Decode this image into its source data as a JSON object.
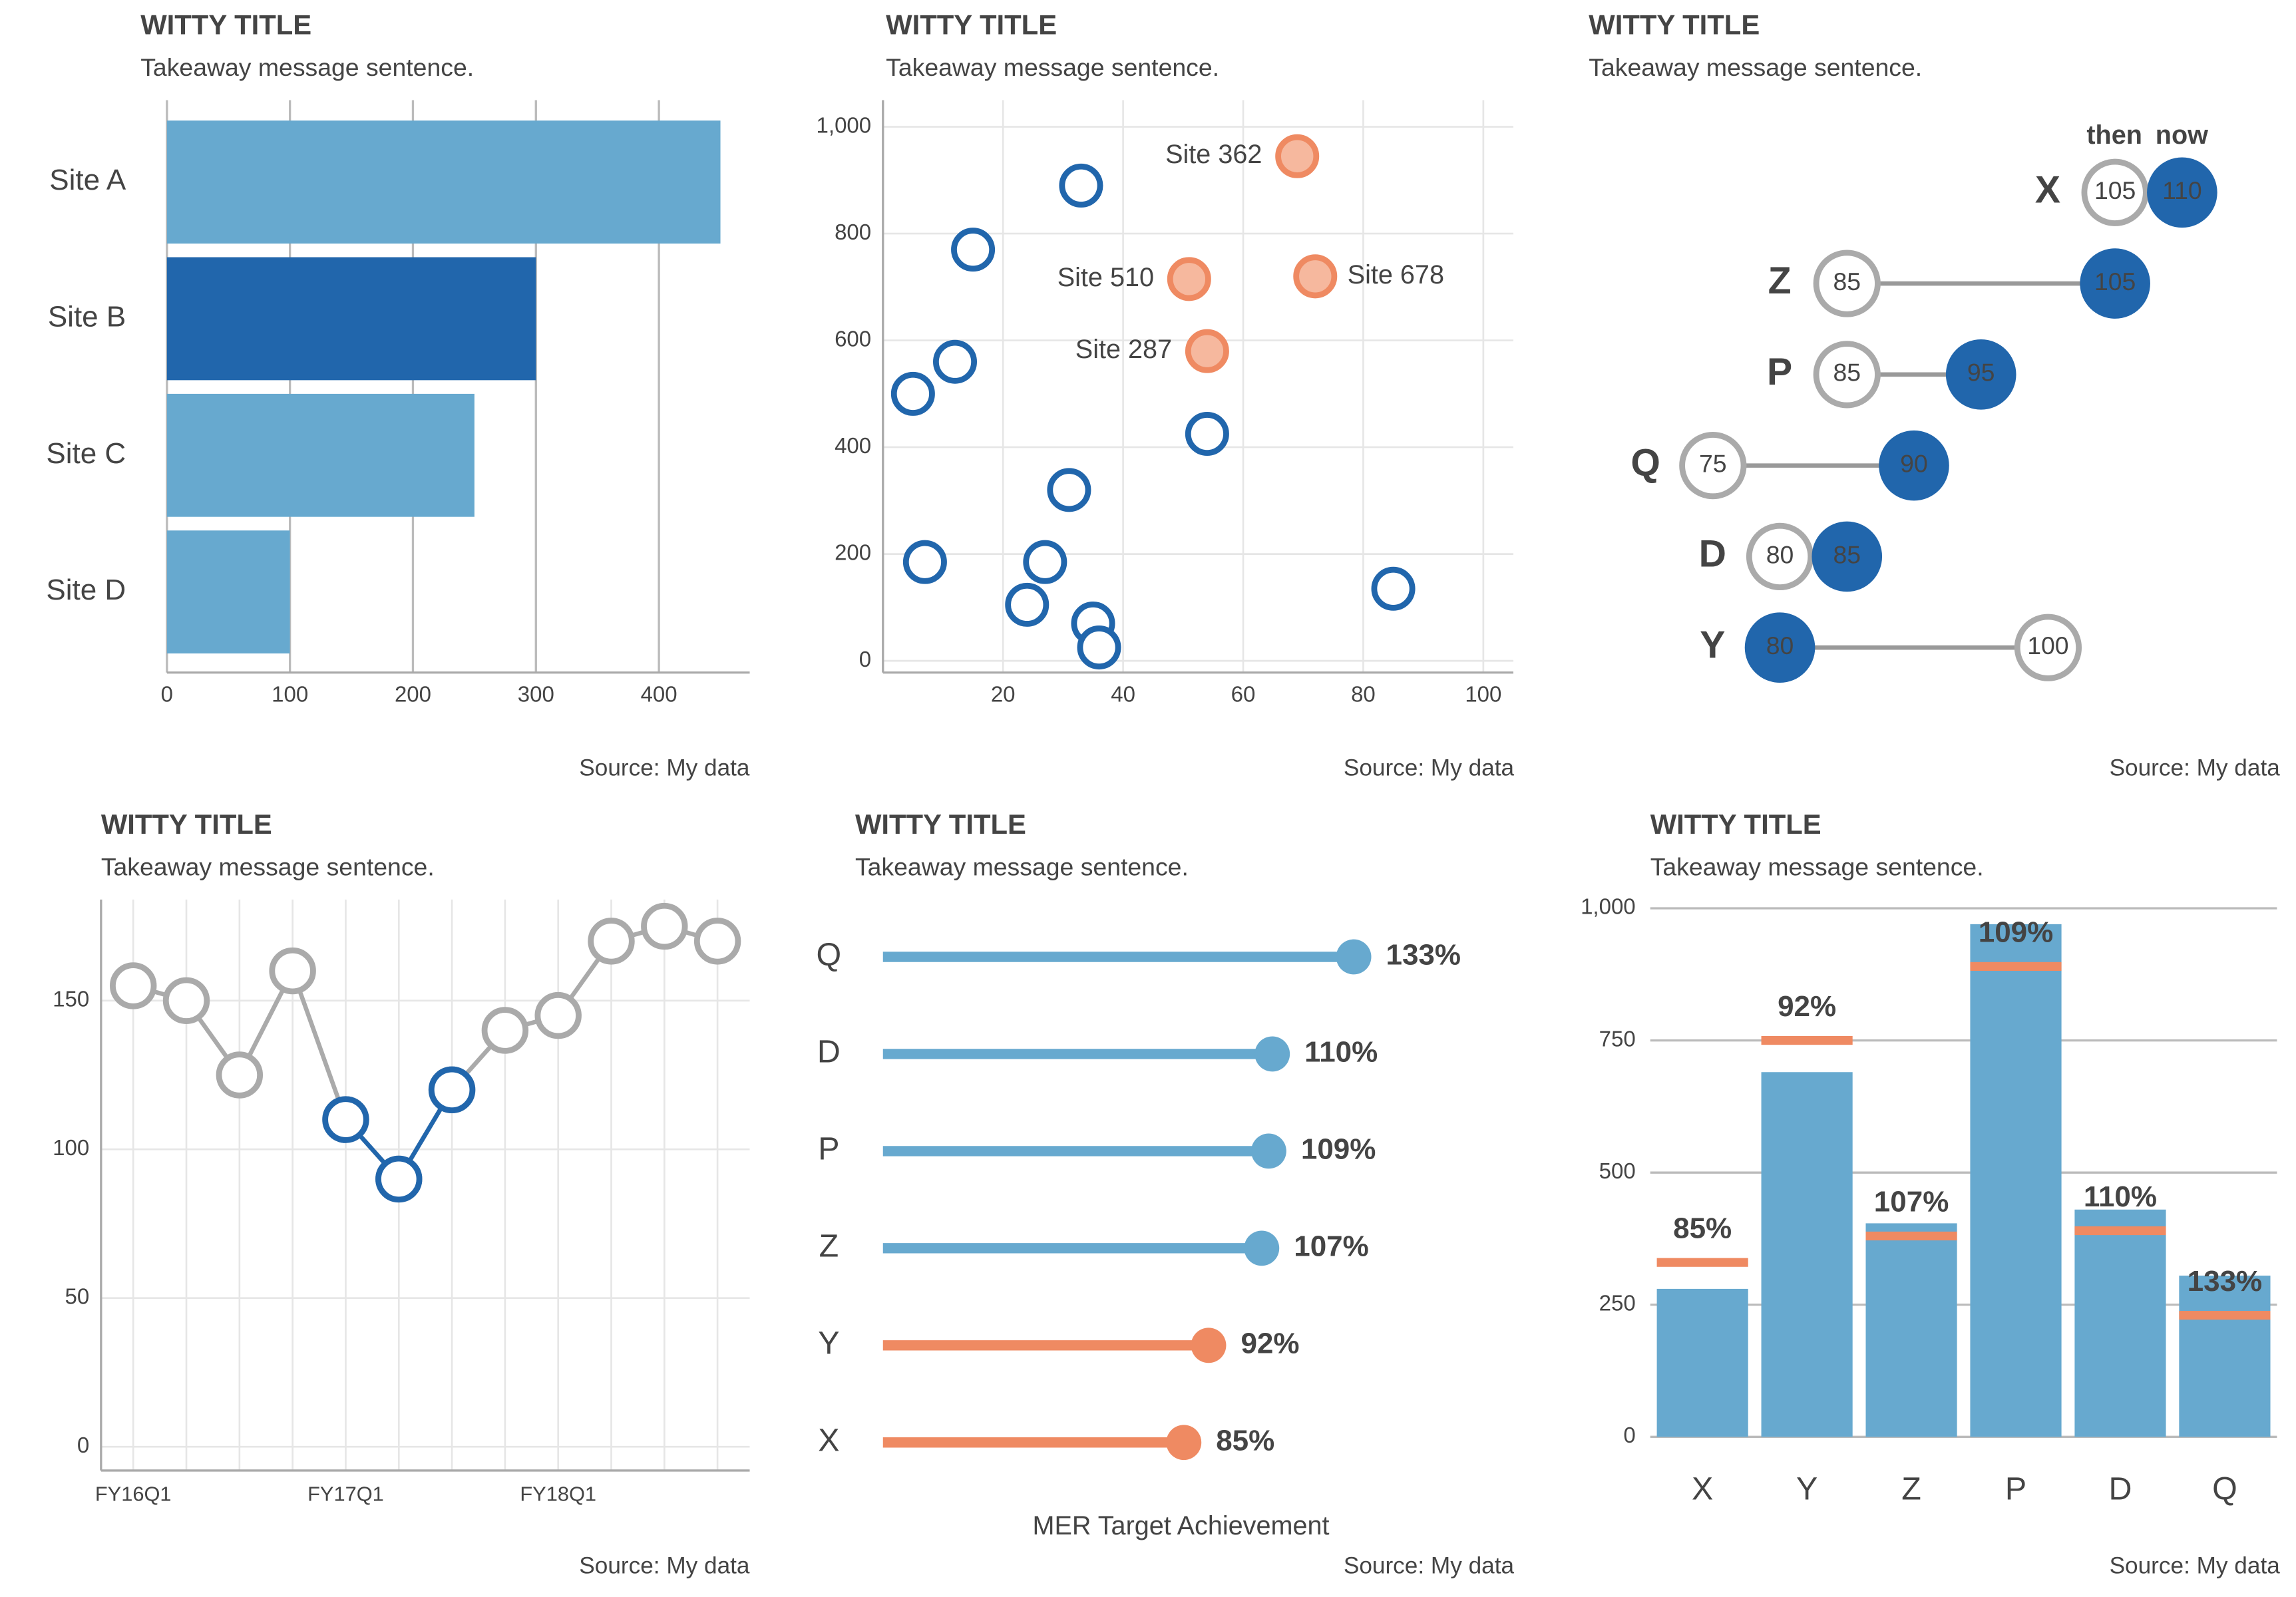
{
  "chart_data": [
    {
      "type": "hbar",
      "title": "WITTY TITLE",
      "subtitle": "Takeaway message sentence.",
      "source": "Source: My data",
      "categories": [
        "Site A",
        "Site B",
        "Site C",
        "Site D"
      ],
      "values": [
        450,
        300,
        250,
        100
      ],
      "colors": [
        "#67a9cf",
        "#2166ac",
        "#67a9cf",
        "#67a9cf"
      ],
      "xlim": [
        0,
        450
      ],
      "xticks": [
        0,
        100,
        200,
        300,
        400
      ],
      "grid": true
    },
    {
      "type": "scatter",
      "title": "WITTY TITLE",
      "subtitle": "Takeaway message sentence.",
      "source": "Source: My data",
      "series": [
        {
          "color": "#2166ac",
          "x": [
            33,
            15,
            12,
            5,
            54,
            31,
            7,
            27,
            24,
            35,
            36,
            85
          ],
          "values": [
            890,
            770,
            560,
            500,
            425,
            320,
            185,
            185,
            105,
            70,
            25,
            135
          ]
        },
        {
          "color": "#ef8a62",
          "x": [
            69,
            51,
            72,
            54
          ],
          "values": [
            945,
            715,
            720,
            580
          ],
          "labels": [
            "Site 362",
            "Site 510",
            "Site 678",
            "Site 287"
          ]
        }
      ],
      "xlim": [
        0,
        105
      ],
      "xticks": [
        20,
        40,
        60,
        80,
        100
      ],
      "ylim": [
        -22,
        1050
      ],
      "yticks": [
        0,
        200,
        400,
        600,
        800,
        {
          "value": 1000,
          "label": "1,000"
        }
      ],
      "grid": true
    },
    {
      "type": "dumbbell",
      "title": "WITTY TITLE",
      "subtitle": "Takeaway message sentence.",
      "source": "Source: My data",
      "categories": [
        "X",
        "Z",
        "P",
        "Q",
        "D",
        "Y"
      ],
      "series": [
        {
          "name": "then",
          "color": "#aaaaaa",
          "values": [
            105,
            85,
            85,
            75,
            80,
            100
          ]
        },
        {
          "name": "now",
          "color": "#2166ac",
          "values": [
            110,
            105,
            95,
            90,
            85,
            80
          ]
        }
      ],
      "xlim": [
        70,
        115
      ]
    },
    {
      "type": "line",
      "title": "WITTY TITLE",
      "subtitle": "Takeaway message sentence.",
      "source": "Source: My data",
      "categories": [
        "FY16Q1",
        null,
        null,
        null,
        "FY17Q1",
        null,
        null,
        null,
        "FY18Q1",
        null,
        null,
        null
      ],
      "series": [
        {
          "color": "#aaaaaa",
          "values": [
            155,
            150,
            125,
            160,
            110,
            90,
            120,
            140,
            145,
            170,
            175,
            170
          ]
        },
        {
          "color": "#2166ac",
          "values": [
            null,
            null,
            null,
            null,
            110,
            90,
            120,
            null,
            null,
            null,
            null,
            null
          ]
        }
      ],
      "ylim": [
        -8,
        184
      ],
      "yticks": [
        0,
        50,
        100,
        150
      ],
      "grid": true
    },
    {
      "type": "lollipop",
      "title": "WITTY TITLE",
      "subtitle": "Takeaway message sentence.",
      "source": "Source: My data",
      "categories": [
        "Q",
        "D",
        "P",
        "Z",
        "Y",
        "X"
      ],
      "values": [
        133,
        110,
        109,
        107,
        92,
        85
      ],
      "value_labels": [
        "133%",
        "110%",
        "109%",
        "107%",
        "92%",
        "85%"
      ],
      "colors": [
        "#67a9cf",
        "#67a9cf",
        "#67a9cf",
        "#67a9cf",
        "#ef8a62",
        "#ef8a62"
      ],
      "xlim": [
        0,
        175
      ],
      "xlabel": "MER Target Achievement"
    },
    {
      "type": "bar",
      "title": "WITTY TITLE",
      "subtitle": "Takeaway message sentence.",
      "source": "Source: My data",
      "categories": [
        "X",
        "Y",
        "Z",
        "P",
        "D",
        "Q"
      ],
      "values": [
        280,
        690,
        404,
        970,
        430,
        305
      ],
      "color": "#67a9cf",
      "targets": [
        330,
        750,
        380,
        890,
        390,
        230
      ],
      "target_color": "#ef8a62",
      "percents": [
        85,
        92,
        107,
        109,
        110,
        133
      ],
      "percent_labels": [
        "85%",
        "92%",
        "107%",
        "109%",
        "110%",
        "133%"
      ],
      "label_color": "#d95f02",
      "ylim": [
        0,
        1000
      ],
      "yticks": [
        0,
        250,
        500,
        750,
        {
          "value": 1000,
          "label": "1,000"
        }
      ],
      "grid": true
    }
  ]
}
